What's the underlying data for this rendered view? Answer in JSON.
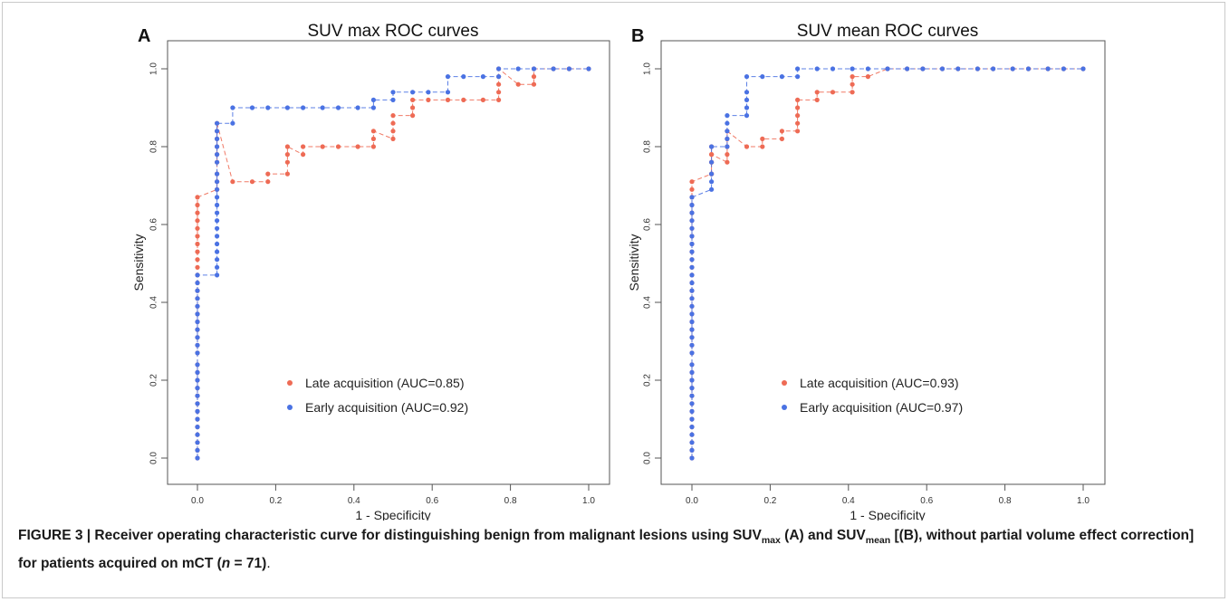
{
  "caption": {
    "fig_label": "FIGURE 3 | Receiver operating characteristic curve for distinguishing benign from malignant lesions using SUV",
    "sub_max": "max",
    "part_a": " (A) and SUV",
    "sub_mean": "mean",
    "part_b": " [(B), without partial volume effect correction] for patients acquired on mCT (",
    "n_italic": "n",
    "part_c": " = 71)",
    "end": "."
  },
  "colors": {
    "late": "#ee6b55",
    "early": "#4a72e3",
    "axis": "#555555"
  },
  "chart_data": [
    {
      "type": "line",
      "panel_label": "A",
      "title": "SUV max ROC curves",
      "xlabel": "1 - Specificity",
      "ylabel": "Sensitivity",
      "xlim": [
        0,
        1
      ],
      "ylim": [
        0,
        1
      ],
      "xticks": [
        "0.0",
        "0.2",
        "0.4",
        "0.6",
        "0.8",
        "1.0"
      ],
      "yticks": [
        "0.0",
        "0.2",
        "0.4",
        "0.6",
        "0.8",
        "1.0"
      ],
      "legend_position": "bottom-center",
      "grid": false,
      "series": [
        {
          "name": "Late acquisition (AUC=0.85)",
          "color": "#ee6b55",
          "x": [
            0,
            0,
            0,
            0,
            0,
            0,
            0,
            0,
            0,
            0,
            0,
            0,
            0,
            0,
            0,
            0,
            0,
            0,
            0,
            0,
            0,
            0,
            0,
            0,
            0,
            0,
            0,
            0,
            0,
            0,
            0,
            0,
            0,
            0,
            0.05,
            0.05,
            0.05,
            0.05,
            0.05,
            0.05,
            0.05,
            0.05,
            0.05,
            0.09,
            0.14,
            0.18,
            0.18,
            0.23,
            0.23,
            0.23,
            0.23,
            0.27,
            0.27,
            0.32,
            0.36,
            0.41,
            0.45,
            0.45,
            0.45,
            0.5,
            0.5,
            0.5,
            0.5,
            0.55,
            0.55,
            0.55,
            0.59,
            0.64,
            0.68,
            0.73,
            0.77,
            0.77,
            0.77,
            0.77,
            0.77,
            0.82,
            0.86,
            0.86,
            0.86,
            0.91,
            0.95,
            1.0
          ],
          "y": [
            0,
            0.02,
            0.04,
            0.06,
            0.08,
            0.1,
            0.12,
            0.14,
            0.16,
            0.18,
            0.2,
            0.22,
            0.24,
            0.27,
            0.29,
            0.31,
            0.33,
            0.35,
            0.37,
            0.39,
            0.41,
            0.43,
            0.45,
            0.47,
            0.49,
            0.51,
            0.53,
            0.55,
            0.57,
            0.59,
            0.61,
            0.63,
            0.65,
            0.67,
            0.69,
            0.71,
            0.73,
            0.76,
            0.78,
            0.8,
            0.82,
            0.84,
            0.86,
            0.71,
            0.71,
            0.71,
            0.73,
            0.73,
            0.76,
            0.78,
            0.8,
            0.78,
            0.8,
            0.8,
            0.8,
            0.8,
            0.8,
            0.82,
            0.84,
            0.82,
            0.84,
            0.86,
            0.88,
            0.88,
            0.9,
            0.92,
            0.92,
            0.92,
            0.92,
            0.92,
            0.92,
            0.94,
            0.96,
            0.98,
            1.0,
            0.96,
            0.96,
            0.98,
            1.0,
            1.0,
            1.0,
            1.0
          ]
        },
        {
          "name": "Early acquisition (AUC=0.92)",
          "color": "#4a72e3",
          "x": [
            0,
            0,
            0,
            0,
            0,
            0,
            0,
            0,
            0,
            0,
            0,
            0,
            0,
            0,
            0,
            0,
            0,
            0,
            0,
            0,
            0,
            0,
            0,
            0,
            0.05,
            0.05,
            0.05,
            0.05,
            0.05,
            0.05,
            0.05,
            0.05,
            0.05,
            0.05,
            0.05,
            0.05,
            0.05,
            0.05,
            0.05,
            0.05,
            0.05,
            0.05,
            0.05,
            0.05,
            0.09,
            0.09,
            0.14,
            0.18,
            0.23,
            0.27,
            0.32,
            0.36,
            0.41,
            0.45,
            0.45,
            0.5,
            0.5,
            0.55,
            0.59,
            0.64,
            0.64,
            0.68,
            0.73,
            0.77,
            0.77,
            0.82,
            0.86,
            0.91,
            0.95,
            1.0
          ],
          "y": [
            0,
            0.02,
            0.04,
            0.06,
            0.08,
            0.1,
            0.12,
            0.14,
            0.16,
            0.18,
            0.2,
            0.22,
            0.24,
            0.27,
            0.29,
            0.31,
            0.33,
            0.35,
            0.37,
            0.39,
            0.41,
            0.43,
            0.45,
            0.47,
            0.47,
            0.49,
            0.51,
            0.53,
            0.55,
            0.57,
            0.59,
            0.61,
            0.63,
            0.65,
            0.67,
            0.69,
            0.71,
            0.73,
            0.76,
            0.78,
            0.8,
            0.82,
            0.84,
            0.86,
            0.86,
            0.9,
            0.9,
            0.9,
            0.9,
            0.9,
            0.9,
            0.9,
            0.9,
            0.9,
            0.92,
            0.92,
            0.94,
            0.94,
            0.94,
            0.94,
            0.98,
            0.98,
            0.98,
            0.98,
            1.0,
            1.0,
            1.0,
            1.0,
            1.0,
            1.0
          ]
        }
      ]
    },
    {
      "type": "line",
      "panel_label": "B",
      "title": "SUV mean ROC curves",
      "xlabel": "1 - Specificity",
      "ylabel": "Sensitivity",
      "xlim": [
        0,
        1
      ],
      "ylim": [
        0,
        1
      ],
      "xticks": [
        "0.0",
        "0.2",
        "0.4",
        "0.6",
        "0.8",
        "1.0"
      ],
      "yticks": [
        "0.0",
        "0.2",
        "0.4",
        "0.6",
        "0.8",
        "1.0"
      ],
      "legend_position": "bottom-center",
      "grid": false,
      "series": [
        {
          "name": "Late acquisition (AUC=0.93)",
          "color": "#ee6b55",
          "x": [
            0,
            0,
            0,
            0,
            0,
            0,
            0,
            0,
            0,
            0,
            0,
            0,
            0,
            0,
            0,
            0,
            0,
            0,
            0,
            0,
            0,
            0,
            0,
            0,
            0,
            0,
            0,
            0,
            0,
            0,
            0,
            0,
            0,
            0,
            0,
            0,
            0.05,
            0.05,
            0.05,
            0.05,
            0.05,
            0.05,
            0.05,
            0.09,
            0.09,
            0.09,
            0.09,
            0.09,
            0.14,
            0.18,
            0.18,
            0.23,
            0.23,
            0.27,
            0.27,
            0.27,
            0.27,
            0.27,
            0.32,
            0.32,
            0.36,
            0.41,
            0.41,
            0.41,
            0.45,
            0.5,
            0.55,
            0.59,
            0.64,
            0.68,
            0.73,
            0.77,
            0.82,
            0.86,
            0.91,
            0.95,
            1.0
          ],
          "y": [
            0,
            0.02,
            0.04,
            0.06,
            0.08,
            0.1,
            0.12,
            0.14,
            0.16,
            0.18,
            0.2,
            0.22,
            0.24,
            0.27,
            0.29,
            0.31,
            0.33,
            0.35,
            0.37,
            0.39,
            0.41,
            0.43,
            0.45,
            0.47,
            0.49,
            0.51,
            0.53,
            0.55,
            0.57,
            0.59,
            0.61,
            0.63,
            0.65,
            0.67,
            0.69,
            0.71,
            0.73,
            0.76,
            0.78,
            0.8,
            0.73,
            0.76,
            0.78,
            0.76,
            0.78,
            0.8,
            0.82,
            0.84,
            0.8,
            0.8,
            0.82,
            0.82,
            0.84,
            0.84,
            0.86,
            0.88,
            0.9,
            0.92,
            0.92,
            0.94,
            0.94,
            0.94,
            0.96,
            0.98,
            0.98,
            1.0,
            1.0,
            1.0,
            1.0,
            1.0,
            1.0,
            1.0,
            1.0,
            1.0,
            1.0,
            1.0,
            1.0
          ]
        },
        {
          "name": "Early acquisition (AUC=0.97)",
          "color": "#4a72e3",
          "x": [
            0,
            0,
            0,
            0,
            0,
            0,
            0,
            0,
            0,
            0,
            0,
            0,
            0,
            0,
            0,
            0,
            0,
            0,
            0,
            0,
            0,
            0,
            0,
            0,
            0,
            0,
            0,
            0,
            0,
            0,
            0,
            0,
            0,
            0,
            0.05,
            0.05,
            0.05,
            0.05,
            0.05,
            0.09,
            0.09,
            0.09,
            0.09,
            0.09,
            0.14,
            0.14,
            0.14,
            0.14,
            0.14,
            0.18,
            0.23,
            0.27,
            0.27,
            0.32,
            0.36,
            0.41,
            0.45,
            0.5,
            0.55,
            0.59,
            0.64,
            0.68,
            0.73,
            0.77,
            0.82,
            0.86,
            0.91,
            0.95,
            1.0
          ],
          "y": [
            0,
            0.02,
            0.04,
            0.06,
            0.08,
            0.1,
            0.12,
            0.14,
            0.16,
            0.18,
            0.2,
            0.22,
            0.24,
            0.27,
            0.29,
            0.31,
            0.33,
            0.35,
            0.37,
            0.39,
            0.41,
            0.43,
            0.45,
            0.47,
            0.49,
            0.51,
            0.53,
            0.55,
            0.57,
            0.59,
            0.61,
            0.63,
            0.65,
            0.67,
            0.69,
            0.71,
            0.73,
            0.76,
            0.8,
            0.8,
            0.82,
            0.84,
            0.86,
            0.88,
            0.88,
            0.9,
            0.92,
            0.94,
            0.98,
            0.98,
            0.98,
            0.98,
            1.0,
            1.0,
            1.0,
            1.0,
            1.0,
            1.0,
            1.0,
            1.0,
            1.0,
            1.0,
            1.0,
            1.0,
            1.0,
            1.0,
            1.0,
            1.0,
            1.0
          ]
        }
      ]
    }
  ]
}
